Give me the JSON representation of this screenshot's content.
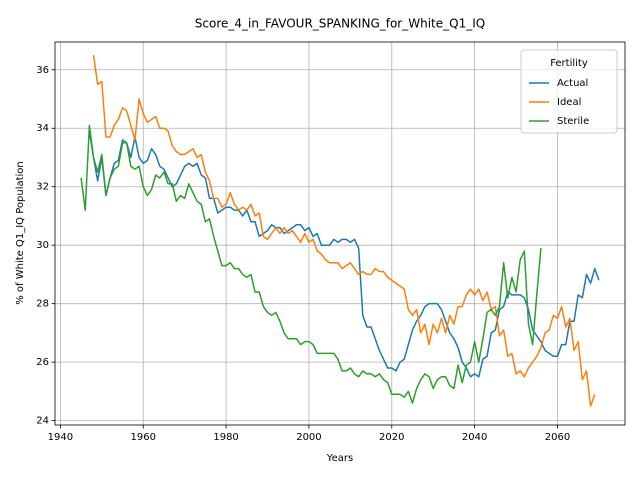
{
  "chart_data": {
    "type": "line",
    "title": "Score_4_in_FAVOUR_SPANKING_for_White_Q1_IQ",
    "xlabel": "Years",
    "ylabel": "% of White Q1_IQ Population",
    "legend_title": "Fertility",
    "legend": "upper right",
    "grid": true,
    "xlim": [
      1938.7,
      2076.3
    ],
    "xticks": [
      1940,
      1960,
      1980,
      2000,
      2020,
      2040,
      2060
    ],
    "ylim": [
      23.85,
      36.95
    ],
    "yticks": [
      24,
      26,
      28,
      30,
      32,
      34,
      36
    ],
    "x": [
      1945,
      1946,
      1947,
      1948,
      1949,
      1950,
      1951,
      1952,
      1953,
      1954,
      1955,
      1956,
      1957,
      1958,
      1959,
      1960,
      1961,
      1962,
      1963,
      1964,
      1965,
      1966,
      1967,
      1968,
      1969,
      1970,
      1971,
      1972,
      1973,
      1974,
      1975,
      1976,
      1977,
      1978,
      1979,
      1980,
      1981,
      1982,
      1983,
      1984,
      1985,
      1986,
      1987,
      1988,
      1989,
      1990,
      1991,
      1992,
      1993,
      1994,
      1995,
      1996,
      1997,
      1998,
      1999,
      2000,
      2001,
      2002,
      2003,
      2004,
      2005,
      2006,
      2007,
      2008,
      2009,
      2010,
      2011,
      2012,
      2013,
      2014,
      2015,
      2016,
      2017,
      2018,
      2019,
      2020,
      2021,
      2022,
      2023,
      2024,
      2025,
      2026,
      2027,
      2028,
      2029,
      2030,
      2031,
      2032,
      2033,
      2034,
      2035,
      2036,
      2037,
      2038,
      2039,
      2040,
      2041,
      2042,
      2043,
      2044,
      2045,
      2046,
      2047,
      2048,
      2049,
      2050,
      2051,
      2052,
      2053,
      2054,
      2055,
      2056,
      2057,
      2058,
      2059,
      2060,
      2061,
      2062,
      2063,
      2064,
      2065,
      2066,
      2067,
      2068,
      2069,
      2070
    ],
    "series": [
      {
        "name": "Actual",
        "color": "#1f77b4",
        "values": [
          null,
          null,
          33.9,
          33.0,
          32.2,
          33.0,
          31.7,
          32.3,
          32.8,
          32.9,
          33.6,
          33.5,
          33.0,
          33.7,
          33.0,
          32.8,
          32.9,
          33.3,
          33.1,
          32.7,
          32.6,
          32.3,
          32.0,
          32.1,
          32.4,
          32.7,
          32.8,
          32.7,
          32.8,
          32.4,
          32.3,
          31.6,
          31.6,
          31.1,
          31.2,
          31.3,
          31.3,
          31.2,
          31.2,
          31.0,
          31.2,
          30.8,
          30.8,
          30.3,
          30.4,
          30.5,
          30.7,
          30.6,
          30.6,
          30.4,
          30.5,
          30.6,
          30.7,
          30.7,
          30.5,
          30.6,
          30.3,
          30.4,
          30.0,
          30.0,
          30.0,
          30.2,
          30.1,
          30.2,
          30.2,
          30.1,
          30.2,
          29.9,
          27.6,
          27.2,
          27.2,
          26.8,
          26.4,
          26.1,
          25.8,
          25.8,
          25.7,
          26.0,
          26.1,
          26.6,
          27.1,
          27.4,
          27.6,
          27.9,
          28.0,
          28.0,
          28.0,
          27.8,
          27.4,
          27.0,
          26.8,
          26.5,
          26.0,
          25.8,
          25.5,
          25.6,
          25.5,
          26.1,
          26.2,
          27.0,
          27.1,
          27.8,
          27.9,
          28.4,
          28.3,
          28.3,
          28.3,
          28.2,
          27.8,
          27.1,
          26.9,
          26.7,
          26.4,
          26.3,
          26.2,
          26.2,
          26.6,
          26.6,
          27.4,
          27.4,
          28.3,
          28.2,
          29.0,
          28.7,
          29.2,
          28.8
        ]
      },
      {
        "name": "Ideal",
        "color": "#ff7f0e",
        "values": [
          null,
          null,
          null,
          36.5,
          35.5,
          35.6,
          33.7,
          33.7,
          34.1,
          34.3,
          34.7,
          34.6,
          34.1,
          33.6,
          35.0,
          34.5,
          34.2,
          34.3,
          34.4,
          34.0,
          34.0,
          33.9,
          33.4,
          33.2,
          33.1,
          33.1,
          33.2,
          33.3,
          33.0,
          33.1,
          32.5,
          32.2,
          31.6,
          31.6,
          31.3,
          31.4,
          31.8,
          31.4,
          31.2,
          31.3,
          31.2,
          31.4,
          31.0,
          31.1,
          30.3,
          30.2,
          30.4,
          30.6,
          30.4,
          30.6,
          30.4,
          30.5,
          30.3,
          30.1,
          30.4,
          30.1,
          30.2,
          29.8,
          29.7,
          29.5,
          29.4,
          29.4,
          29.4,
          29.2,
          29.3,
          29.4,
          29.2,
          29.0,
          29.1,
          29.0,
          29.0,
          29.2,
          29.1,
          29.1,
          28.9,
          28.8,
          28.7,
          28.6,
          28.5,
          27.8,
          27.6,
          27.8,
          27.0,
          27.3,
          26.6,
          27.3,
          27.0,
          27.5,
          27.0,
          27.6,
          27.3,
          27.9,
          27.9,
          28.3,
          28.5,
          28.3,
          28.5,
          28.1,
          28.4,
          27.8,
          27.9,
          26.9,
          27.1,
          26.2,
          26.3,
          25.6,
          25.7,
          25.5,
          25.8,
          26.0,
          26.2,
          26.5,
          27.0,
          27.1,
          27.6,
          27.5,
          27.9,
          27.2,
          27.5,
          26.4,
          26.7,
          25.4,
          25.7,
          24.5,
          24.9,
          null
        ]
      },
      {
        "name": "Sterile",
        "color": "#2ca02c",
        "values": [
          32.3,
          31.2,
          34.1,
          33.0,
          32.5,
          33.1,
          31.7,
          32.3,
          32.6,
          32.7,
          33.5,
          33.5,
          32.7,
          32.6,
          32.7,
          32.0,
          31.7,
          31.9,
          32.4,
          32.3,
          32.5,
          32.1,
          32.1,
          31.5,
          31.7,
          31.6,
          32.1,
          31.8,
          31.5,
          31.4,
          30.8,
          30.9,
          30.3,
          29.8,
          29.3,
          29.3,
          29.4,
          29.2,
          29.2,
          29.0,
          28.9,
          29.0,
          28.4,
          28.4,
          27.9,
          27.7,
          27.6,
          27.7,
          27.4,
          27.0,
          26.8,
          26.8,
          26.8,
          26.6,
          26.7,
          26.7,
          26.6,
          26.3,
          26.3,
          26.3,
          26.3,
          26.3,
          26.1,
          25.7,
          25.7,
          25.8,
          25.6,
          25.5,
          25.7,
          25.6,
          25.6,
          25.5,
          25.6,
          25.4,
          25.3,
          24.9,
          24.9,
          24.9,
          24.8,
          25.0,
          24.6,
          25.1,
          25.4,
          25.6,
          25.5,
          25.1,
          25.4,
          25.5,
          25.5,
          25.2,
          25.1,
          25.9,
          25.3,
          25.9,
          26.0,
          26.7,
          26.0,
          26.8,
          27.7,
          27.8,
          27.6,
          27.9,
          29.4,
          28.2,
          28.9,
          28.4,
          29.5,
          29.8,
          27.3,
          26.6,
          28.3,
          29.9,
          null,
          null,
          null,
          null,
          null,
          null,
          null,
          null,
          null,
          null,
          null,
          null,
          null,
          null
        ]
      }
    ]
  }
}
